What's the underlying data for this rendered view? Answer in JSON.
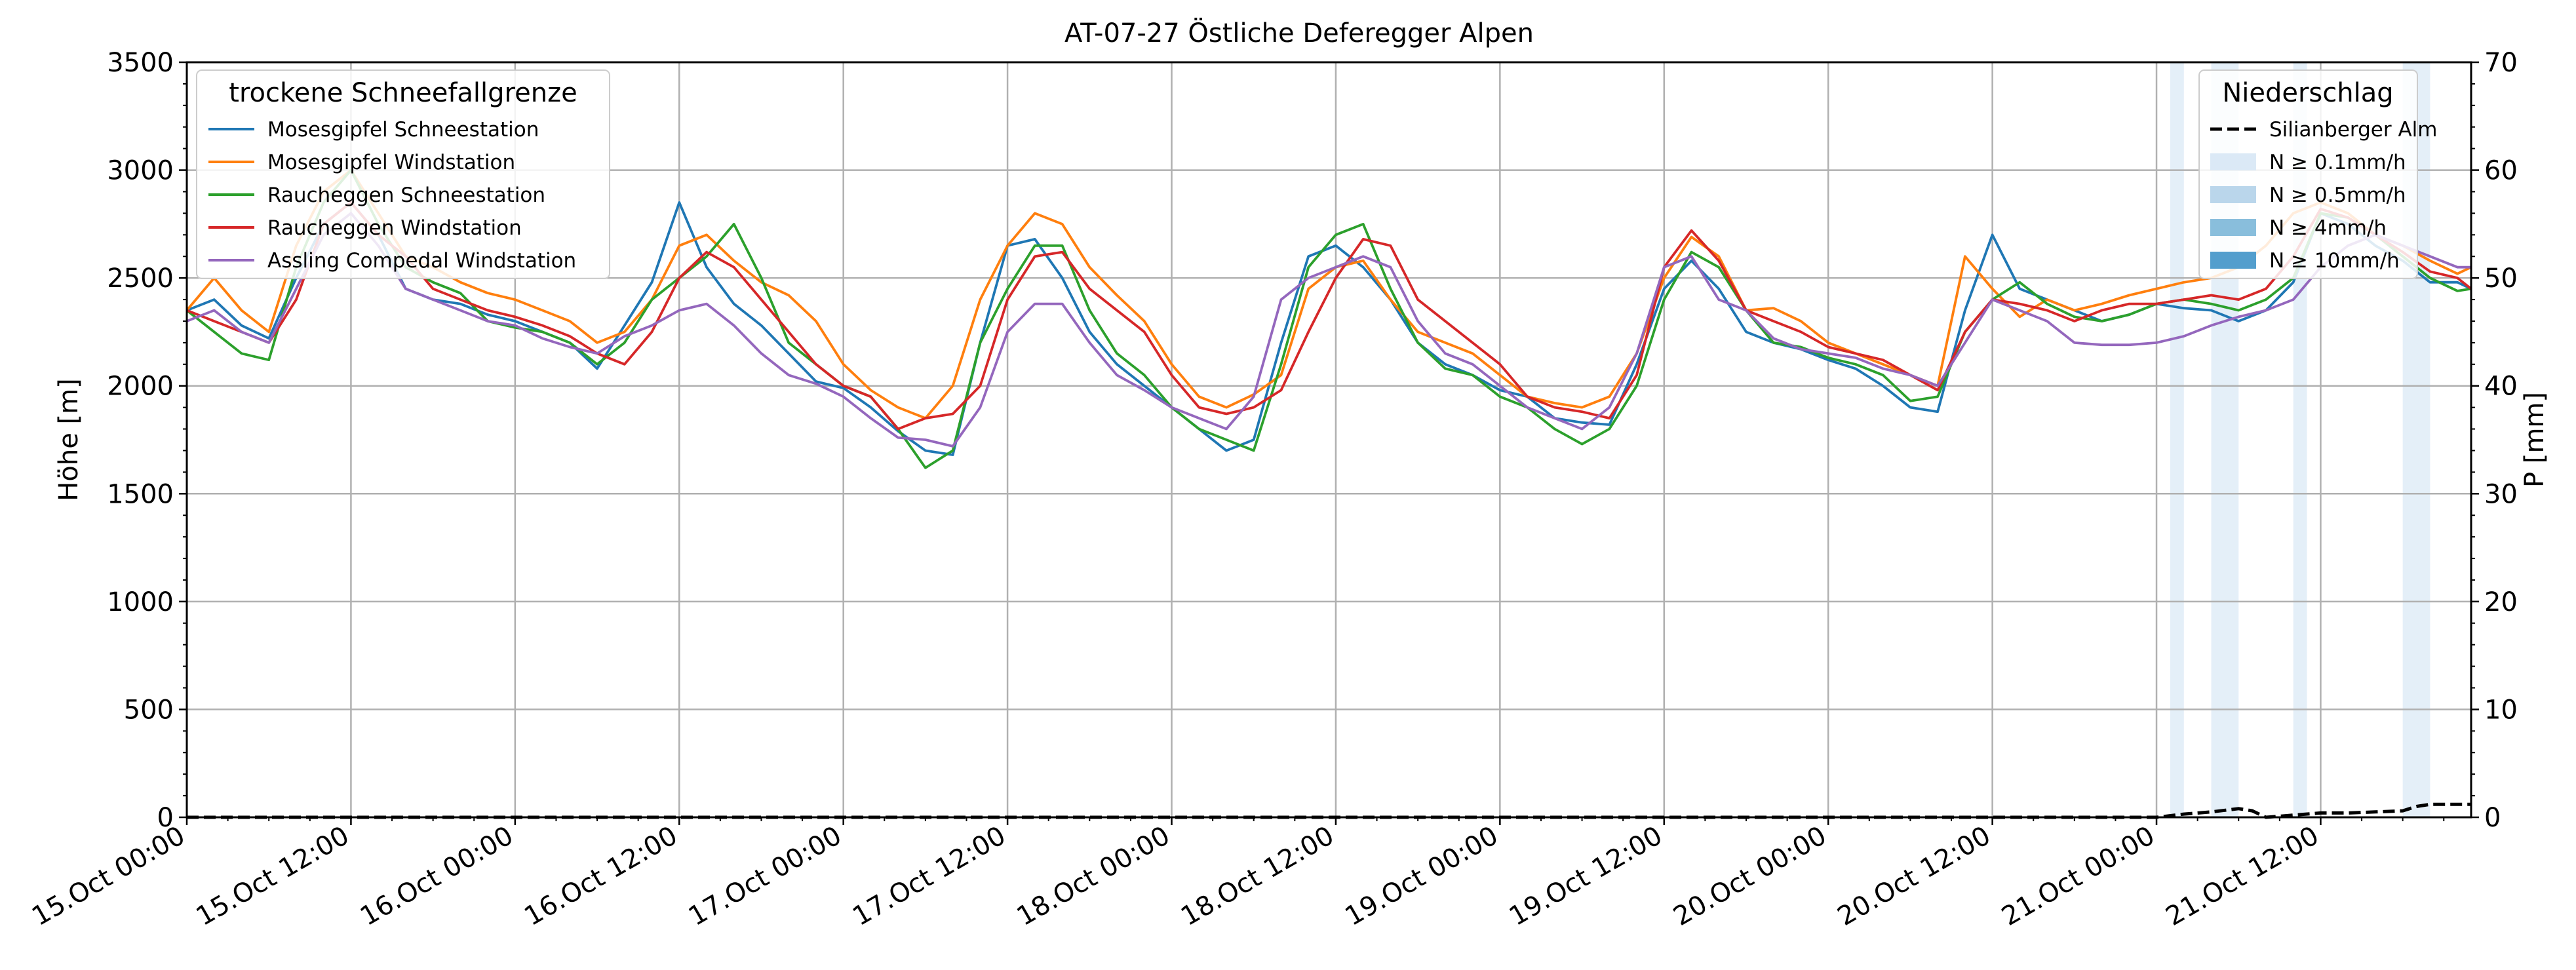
{
  "chart_data": {
    "type": "line",
    "title": "AT-07-27 Östliche Deferegger Alpen",
    "ylabel": "Höhe [m]",
    "y2label": "P [mm]",
    "xlim": [
      0,
      167
    ],
    "ylim": [
      0,
      3500
    ],
    "y2lim": [
      0,
      70
    ],
    "grid": true,
    "x_ticks": [
      {
        "x": 0,
        "label": "15.Oct 00:00"
      },
      {
        "x": 12,
        "label": "15.Oct 12:00"
      },
      {
        "x": 24,
        "label": "16.Oct 00:00"
      },
      {
        "x": 36,
        "label": "16.Oct 12:00"
      },
      {
        "x": 48,
        "label": "17.Oct 00:00"
      },
      {
        "x": 60,
        "label": "17.Oct 12:00"
      },
      {
        "x": 72,
        "label": "18.Oct 00:00"
      },
      {
        "x": 84,
        "label": "18.Oct 12:00"
      },
      {
        "x": 96,
        "label": "19.Oct 00:00"
      },
      {
        "x": 108,
        "label": "19.Oct 12:00"
      },
      {
        "x": 120,
        "label": "20.Oct 00:00"
      },
      {
        "x": 132,
        "label": "20.Oct 12:00"
      },
      {
        "x": 144,
        "label": "21.Oct 00:00"
      },
      {
        "x": 156,
        "label": "21.Oct 12:00"
      }
    ],
    "y_ticks": [
      "0",
      "500",
      "1000",
      "1500",
      "2000",
      "2500",
      "3000",
      "3500"
    ],
    "y2_ticks": [
      "0",
      "10",
      "20",
      "30",
      "40",
      "50",
      "60",
      "70"
    ],
    "legend_left": {
      "title": "trockene Schneefallgrenze",
      "placement": "upper-left"
    },
    "legend_right": {
      "title": "Niederschlag",
      "placement": "upper-right",
      "items": [
        {
          "label": "Silianberger Alm",
          "kind": "dashed-line",
          "color": "#000000"
        },
        {
          "label": "N ≥ 0.1mm/h",
          "kind": "patch",
          "color": "#dbe9f6"
        },
        {
          "label": "N ≥ 0.5mm/h",
          "kind": "patch",
          "color": "#bad6eb"
        },
        {
          "label": "N ≥ 4mm/h",
          "kind": "patch",
          "color": "#89bedc"
        },
        {
          "label": "N ≥ 10mm/h",
          "kind": "patch",
          "color": "#539ecd"
        }
      ]
    },
    "precip_bands": [
      {
        "x0": 145.0,
        "x1": 146.0,
        "level": "N ≥ 0.1mm/h"
      },
      {
        "x0": 148.0,
        "x1": 150.0,
        "level": "N ≥ 0.1mm/h"
      },
      {
        "x0": 154.0,
        "x1": 155.0,
        "level": "N ≥ 0.1mm/h"
      },
      {
        "x0": 162.0,
        "x1": 164.0,
        "level": "N ≥ 0.1mm/h"
      }
    ],
    "precip_series": {
      "name": "Silianberger Alm",
      "color": "#000000",
      "x": [
        0,
        144,
        146,
        148,
        150,
        151,
        152,
        154,
        156,
        158,
        160,
        162,
        163,
        164,
        166,
        167
      ],
      "values": [
        0,
        0,
        0.3,
        0.5,
        0.8,
        0.6,
        0,
        0.2,
        0.4,
        0.4,
        0.5,
        0.6,
        1.0,
        1.2,
        1.2,
        1.2
      ]
    },
    "series": [
      {
        "name": "Mosesgipfel Schneestation",
        "color": "#1f77b4",
        "x": [
          0,
          2,
          4,
          6,
          8,
          10,
          12,
          14,
          16,
          18,
          20,
          22,
          24,
          26,
          28,
          30,
          32,
          34,
          36,
          38,
          40,
          42,
          44,
          46,
          48,
          50,
          52,
          54,
          56,
          58,
          60,
          62,
          64,
          66,
          68,
          70,
          72,
          74,
          76,
          78,
          80,
          82,
          84,
          86,
          88,
          90,
          92,
          94,
          96,
          98,
          100,
          102,
          104,
          106,
          108,
          110,
          112,
          114,
          116,
          118,
          120,
          122,
          124,
          126,
          128,
          130,
          132,
          134,
          136,
          138,
          140,
          142,
          144,
          146,
          148,
          150,
          152,
          154,
          156,
          158,
          160,
          162,
          164,
          166,
          167
        ],
        "values": [
          2350,
          2400,
          2280,
          2220,
          2500,
          2750,
          2850,
          2700,
          2450,
          2400,
          2380,
          2330,
          2300,
          2250,
          2200,
          2080,
          2280,
          2480,
          2850,
          2550,
          2380,
          2280,
          2150,
          2020,
          1990,
          1900,
          1790,
          1700,
          1680,
          2200,
          2650,
          2680,
          2500,
          2250,
          2100,
          2000,
          1900,
          1800,
          1700,
          1750,
          2200,
          2600,
          2650,
          2550,
          2400,
          2200,
          2100,
          2050,
          1980,
          1950,
          1850,
          1830,
          1820,
          2100,
          2450,
          2580,
          2450,
          2250,
          2200,
          2170,
          2120,
          2080,
          2000,
          1900,
          1880,
          2350,
          2700,
          2450,
          2400,
          2350,
          2300,
          2330,
          2380,
          2360,
          2350,
          2300,
          2350,
          2480,
          2800,
          2750,
          2650,
          2580,
          2480,
          2480,
          2450
        ]
      },
      {
        "name": "Mosesgipfel Windstation",
        "color": "#ff7f0e",
        "x": [
          0,
          2,
          4,
          6,
          8,
          10,
          12,
          14,
          16,
          18,
          20,
          22,
          24,
          26,
          28,
          30,
          32,
          34,
          36,
          38,
          40,
          42,
          44,
          46,
          48,
          50,
          52,
          54,
          56,
          58,
          60,
          62,
          64,
          66,
          68,
          70,
          72,
          74,
          76,
          78,
          80,
          82,
          84,
          86,
          88,
          90,
          92,
          94,
          96,
          98,
          100,
          102,
          104,
          106,
          108,
          110,
          112,
          114,
          116,
          118,
          120,
          122,
          124,
          126,
          128,
          130,
          132,
          134,
          136,
          138,
          140,
          142,
          144,
          146,
          148,
          150,
          152,
          154,
          156,
          158,
          160,
          162,
          164,
          166,
          167
        ],
        "values": [
          2350,
          2500,
          2350,
          2250,
          2650,
          2900,
          3000,
          2800,
          2600,
          2550,
          2480,
          2430,
          2400,
          2350,
          2300,
          2200,
          2250,
          2400,
          2650,
          2700,
          2580,
          2480,
          2420,
          2300,
          2100,
          1980,
          1900,
          1850,
          2000,
          2400,
          2650,
          2800,
          2750,
          2550,
          2420,
          2300,
          2100,
          1950,
          1900,
          1960,
          2050,
          2450,
          2550,
          2580,
          2400,
          2250,
          2200,
          2150,
          2050,
          1950,
          1920,
          1900,
          1950,
          2150,
          2500,
          2690,
          2600,
          2350,
          2360,
          2300,
          2200,
          2150,
          2100,
          2050,
          2000,
          2600,
          2450,
          2320,
          2400,
          2350,
          2380,
          2420,
          2450,
          2480,
          2500,
          2550,
          2650,
          2800,
          2850,
          2800,
          2700,
          2650,
          2580,
          2520,
          2550
        ]
      },
      {
        "name": "Raucheggen Schneestation",
        "color": "#2ca02c",
        "x": [
          0,
          2,
          4,
          6,
          8,
          10,
          12,
          14,
          16,
          18,
          20,
          22,
          24,
          26,
          28,
          30,
          32,
          34,
          36,
          38,
          40,
          42,
          44,
          46,
          48,
          50,
          52,
          54,
          56,
          58,
          60,
          62,
          64,
          66,
          68,
          70,
          72,
          74,
          76,
          78,
          80,
          82,
          84,
          86,
          88,
          90,
          92,
          94,
          96,
          98,
          100,
          102,
          104,
          106,
          108,
          110,
          112,
          114,
          116,
          118,
          120,
          122,
          124,
          126,
          128,
          130,
          132,
          134,
          136,
          138,
          140,
          142,
          144,
          146,
          148,
          150,
          152,
          154,
          156,
          158,
          160,
          162,
          164,
          166,
          167
        ],
        "values": [
          2350,
          2250,
          2150,
          2120,
          2550,
          2850,
          3000,
          2750,
          2550,
          2480,
          2430,
          2300,
          2270,
          2250,
          2200,
          2100,
          2200,
          2400,
          2500,
          2600,
          2750,
          2500,
          2200,
          2100,
          2000,
          1950,
          1800,
          1620,
          1700,
          2200,
          2450,
          2650,
          2650,
          2350,
          2150,
          2050,
          1900,
          1800,
          1750,
          1700,
          2100,
          2550,
          2700,
          2750,
          2450,
          2200,
          2080,
          2050,
          1950,
          1900,
          1800,
          1730,
          1800,
          2000,
          2400,
          2620,
          2550,
          2350,
          2200,
          2180,
          2130,
          2100,
          2050,
          1930,
          1950,
          2250,
          2400,
          2480,
          2380,
          2320,
          2300,
          2330,
          2380,
          2400,
          2380,
          2350,
          2400,
          2500,
          2800,
          2780,
          2700,
          2600,
          2500,
          2440,
          2450
        ]
      },
      {
        "name": "Raucheggen Windstation",
        "color": "#d62728",
        "x": [
          0,
          2,
          4,
          6,
          8,
          10,
          12,
          14,
          16,
          18,
          20,
          22,
          24,
          26,
          28,
          30,
          32,
          34,
          36,
          38,
          40,
          42,
          44,
          46,
          48,
          50,
          52,
          54,
          56,
          58,
          60,
          62,
          64,
          66,
          68,
          70,
          72,
          74,
          76,
          78,
          80,
          82,
          84,
          86,
          88,
          90,
          92,
          94,
          96,
          98,
          100,
          102,
          104,
          106,
          108,
          110,
          112,
          114,
          116,
          118,
          120,
          122,
          124,
          126,
          128,
          130,
          132,
          134,
          136,
          138,
          140,
          142,
          144,
          146,
          148,
          150,
          152,
          154,
          156,
          158,
          160,
          162,
          164,
          166,
          167
        ],
        "values": [
          2350,
          2300,
          2250,
          2200,
          2400,
          2750,
          2850,
          2700,
          2600,
          2450,
          2400,
          2350,
          2320,
          2280,
          2230,
          2150,
          2100,
          2250,
          2500,
          2620,
          2550,
          2400,
          2250,
          2100,
          2000,
          1950,
          1800,
          1850,
          1870,
          2000,
          2400,
          2600,
          2620,
          2450,
          2350,
          2250,
          2050,
          1900,
          1870,
          1900,
          1980,
          2250,
          2500,
          2680,
          2650,
          2400,
          2300,
          2200,
          2100,
          1950,
          1900,
          1880,
          1850,
          2050,
          2550,
          2720,
          2580,
          2350,
          2300,
          2250,
          2180,
          2150,
          2120,
          2050,
          1980,
          2250,
          2400,
          2380,
          2350,
          2300,
          2350,
          2380,
          2380,
          2400,
          2420,
          2400,
          2450,
          2600,
          2820,
          2780,
          2700,
          2620,
          2530,
          2500,
          2450
        ]
      },
      {
        "name": "Assling Compedal Windstation",
        "color": "#9467bd",
        "x": [
          0,
          2,
          4,
          6,
          8,
          10,
          12,
          14,
          16,
          18,
          20,
          22,
          24,
          26,
          28,
          30,
          32,
          34,
          36,
          38,
          40,
          42,
          44,
          46,
          48,
          50,
          52,
          54,
          56,
          58,
          60,
          62,
          64,
          66,
          68,
          70,
          72,
          74,
          76,
          78,
          80,
          82,
          84,
          86,
          88,
          90,
          92,
          94,
          96,
          98,
          100,
          102,
          104,
          106,
          108,
          110,
          112,
          114,
          116,
          118,
          120,
          122,
          124,
          126,
          128,
          130,
          132,
          134,
          136,
          138,
          140,
          142,
          144,
          146,
          148,
          150,
          152,
          154,
          156,
          158,
          160,
          162,
          164,
          166,
          167
        ],
        "values": [
          2300,
          2350,
          2250,
          2200,
          2450,
          2700,
          2800,
          2650,
          2450,
          2400,
          2350,
          2300,
          2280,
          2220,
          2180,
          2150,
          2230,
          2280,
          2350,
          2380,
          2280,
          2150,
          2050,
          2010,
          1950,
          1850,
          1760,
          1750,
          1720,
          1900,
          2250,
          2380,
          2380,
          2200,
          2050,
          1980,
          1900,
          1850,
          1800,
          1950,
          2400,
          2500,
          2550,
          2600,
          2550,
          2300,
          2150,
          2100,
          2000,
          1900,
          1850,
          1800,
          1900,
          2150,
          2550,
          2600,
          2400,
          2350,
          2220,
          2170,
          2150,
          2130,
          2080,
          2050,
          2000,
          2200,
          2400,
          2350,
          2300,
          2200,
          2190,
          2190,
          2200,
          2230,
          2280,
          2320,
          2350,
          2400,
          2550,
          2650,
          2700,
          2650,
          2600,
          2550,
          2550
        ]
      }
    ]
  }
}
